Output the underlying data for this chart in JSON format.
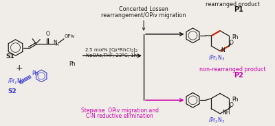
{
  "bg_color": "#f0ede8",
  "black": "#1a1a1a",
  "blue": "#3333cc",
  "magenta": "#cc00aa",
  "red_bond": "#cc2200",
  "figsize": [
    4.0,
    1.84
  ],
  "dpi": 100,
  "texts": {
    "concerted1": "Concerted Lossen",
    "concerted2": "rearrangement/OPiv migration",
    "rearranged": "rearranged product",
    "P1": "P1",
    "non_rearranged": "non-rearranged product",
    "P2": "P2",
    "stepwise1": "Stepwise  OPiv migration and",
    "stepwise2": "C-N reductive elimination",
    "conditions1": "2.5 mol% [Cp*RhCl",
    "conditions2": "NaOAc,THF, 23°C, 1h",
    "S1": "S1",
    "S2": "S2",
    "OPiv": "OPiv",
    "Ph": "Ph",
    "iPr2N3": "iPr₂N₃"
  }
}
